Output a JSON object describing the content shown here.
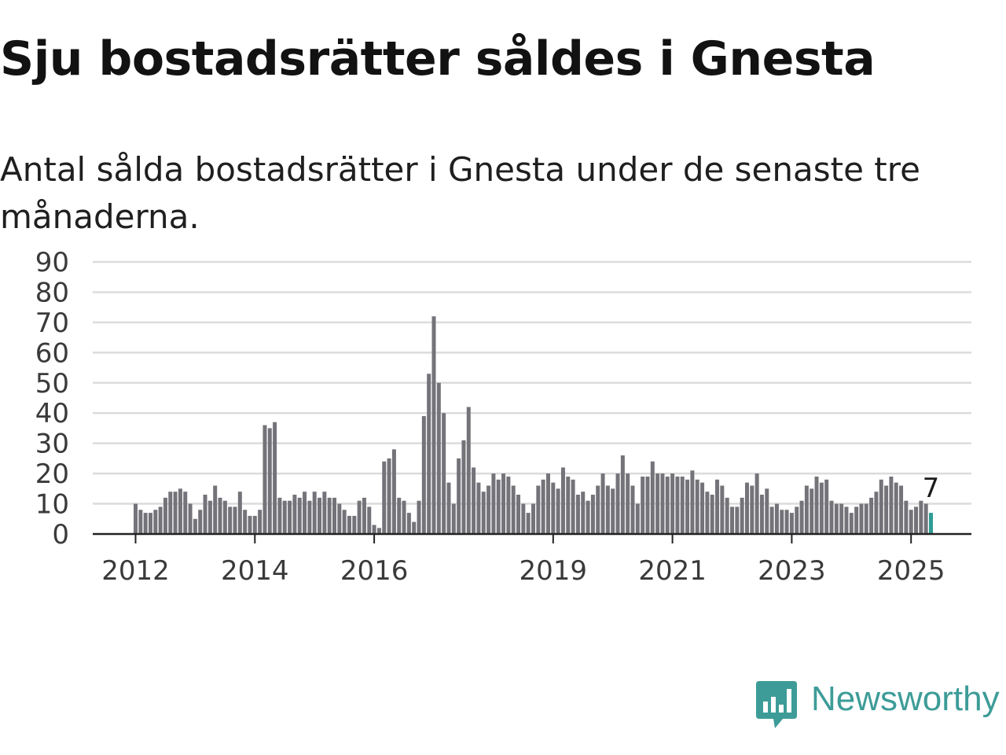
{
  "title": "Sju bostadsrätter såldes i Gnesta",
  "subtitle": "Antal sålda bostadsrätter i Gnesta under de senaste tre månaderna.",
  "brand": {
    "name": "Newsworthy",
    "color": "#3d9c98",
    "icon": "bar-chart-speech-bubble-icon"
  },
  "chart_data": {
    "type": "bar",
    "ylim": [
      0,
      90
    ],
    "yticks": [
      0,
      10,
      20,
      30,
      40,
      50,
      60,
      70,
      80,
      90
    ],
    "xticks": [
      {
        "label": "2012",
        "index": 0
      },
      {
        "label": "2014",
        "index": 24
      },
      {
        "label": "2016",
        "index": 48
      },
      {
        "label": "2019",
        "index": 84
      },
      {
        "label": "2021",
        "index": 108
      },
      {
        "label": "2023",
        "index": 132
      },
      {
        "label": "2025",
        "index": 156
      }
    ],
    "grid": true,
    "bar_color": "#747379",
    "highlight_color": "#2e9c95",
    "highlight_index": 160,
    "last_value_label": "7",
    "values": [
      10,
      8,
      7,
      7,
      8,
      9,
      12,
      14,
      14,
      15,
      14,
      10,
      5,
      8,
      13,
      11,
      16,
      12,
      11,
      9,
      9,
      14,
      8,
      6,
      6,
      8,
      36,
      35,
      37,
      12,
      11,
      11,
      13,
      12,
      14,
      11,
      14,
      12,
      14,
      12,
      12,
      10,
      8,
      6,
      6,
      11,
      12,
      9,
      3,
      2,
      24,
      25,
      28,
      12,
      11,
      7,
      4,
      11,
      39,
      53,
      72,
      50,
      40,
      17,
      10,
      25,
      31,
      42,
      22,
      17,
      14,
      16,
      20,
      18,
      20,
      19,
      16,
      13,
      10,
      7,
      10,
      16,
      18,
      20,
      17,
      15,
      22,
      19,
      18,
      13,
      14,
      11,
      13,
      16,
      20,
      16,
      15,
      20,
      26,
      20,
      16,
      10,
      19,
      19,
      24,
      20,
      20,
      19,
      20,
      19,
      19,
      18,
      21,
      18,
      17,
      14,
      13,
      18,
      16,
      12,
      9,
      9,
      12,
      17,
      16,
      20,
      13,
      15,
      9,
      10,
      8,
      8,
      7,
      9,
      11,
      16,
      15,
      19,
      17,
      18,
      11,
      10,
      10,
      9,
      7,
      9,
      10,
      10,
      12,
      14,
      18,
      16,
      19,
      17,
      16,
      11,
      8,
      9,
      11,
      10,
      7
    ]
  }
}
